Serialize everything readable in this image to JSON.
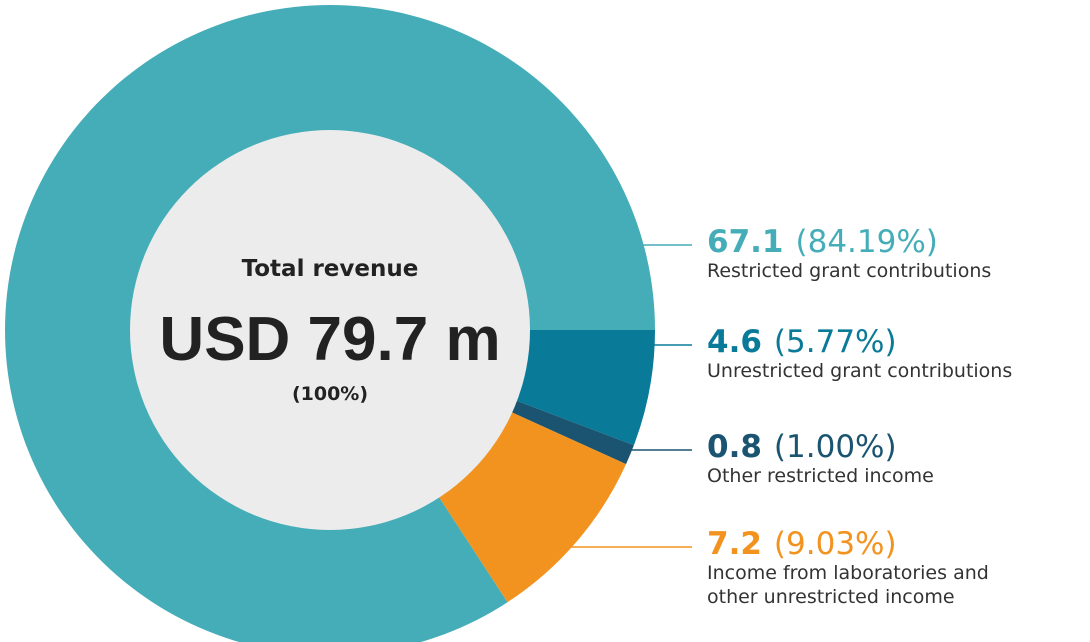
{
  "chart_data": {
    "type": "donut",
    "center_title": "Total revenue",
    "center_value": "USD 79.7 m",
    "center_share": "(100%)",
    "categories": [
      "Restricted grant contributions",
      "Unrestricted grant contributions",
      "Other restricted income",
      "Income from laboratories and other unrestricted income"
    ],
    "amounts": [
      67.1,
      4.6,
      0.8,
      7.2
    ],
    "values": [
      84.19,
      5.77,
      1.0,
      9.03
    ],
    "value_labels": [
      "(84.19%)",
      "(5.77%)",
      "(1.00%)",
      "(9.03%)"
    ],
    "colors": [
      "#45adb8",
      "#0a7a99",
      "#1a5470",
      "#f2931f"
    ]
  }
}
